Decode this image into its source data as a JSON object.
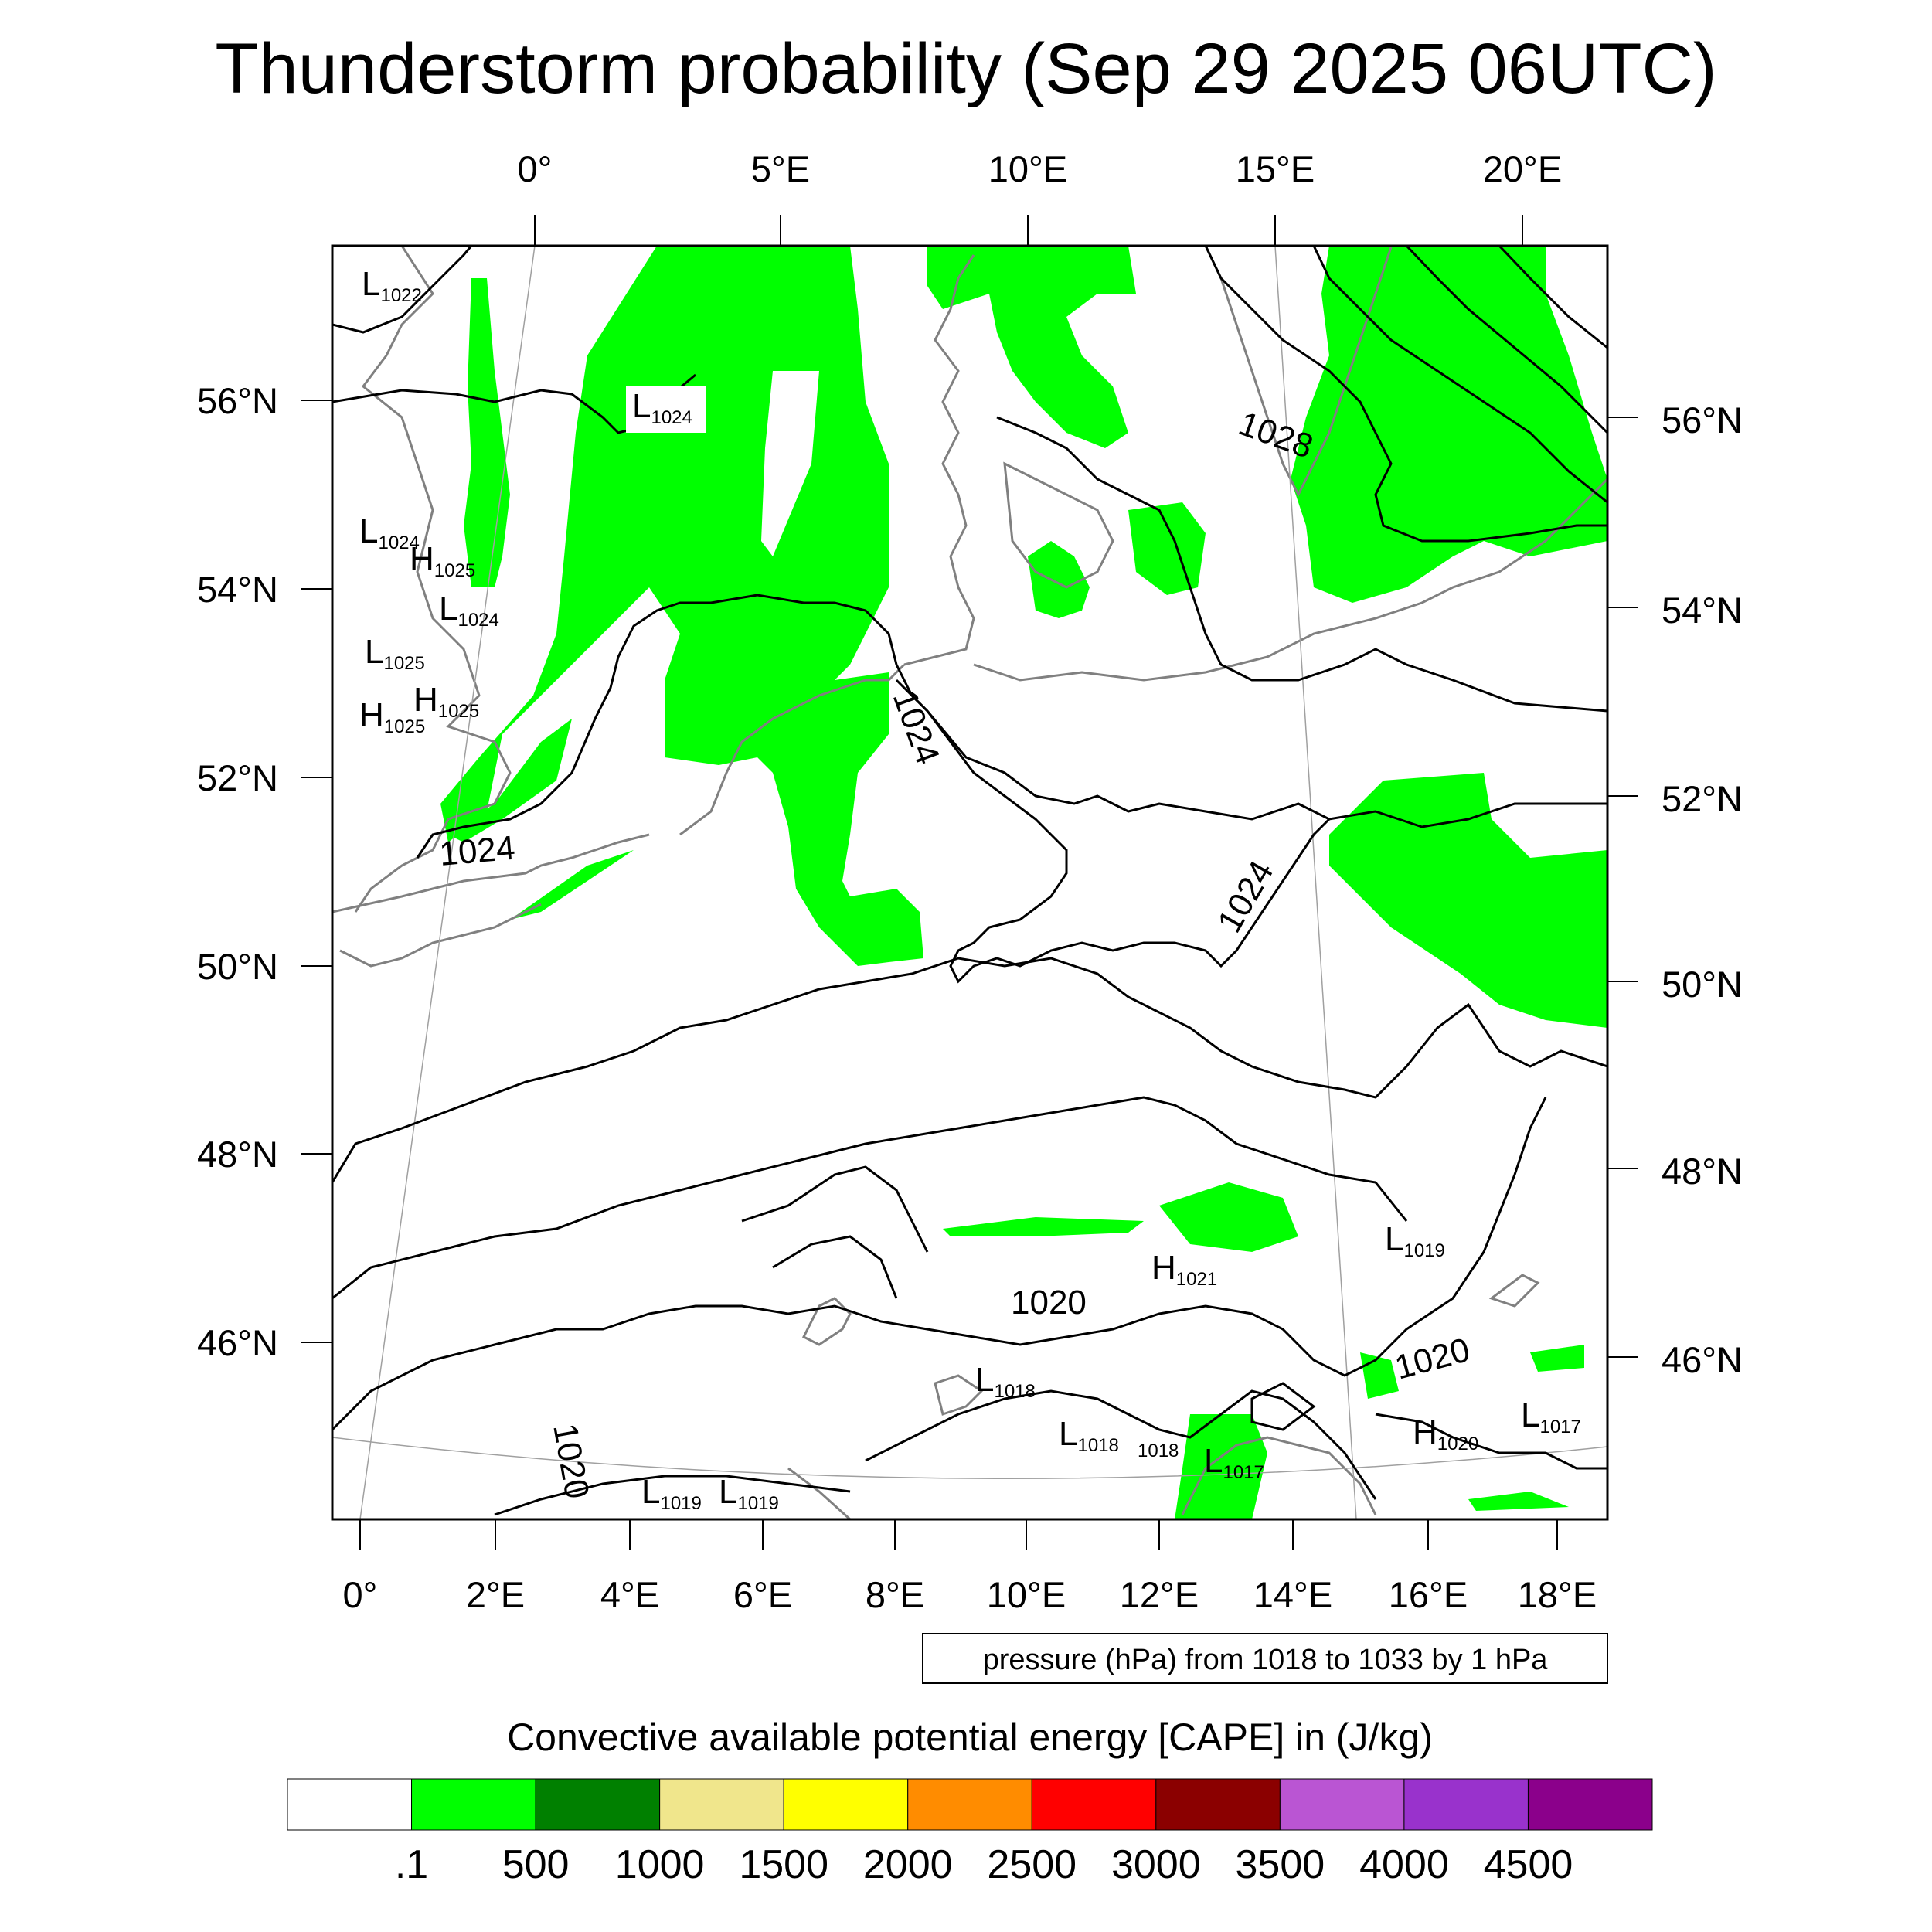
{
  "title": "Thunderstorm probability (Sep 29 2025 06UTC)",
  "top_lon_labels": [
    "0°",
    "5°E",
    "10°E",
    "15°E",
    "20°E"
  ],
  "bottom_lon_labels": [
    "0°",
    "2°E",
    "4°E",
    "6°E",
    "8°E",
    "10°E",
    "12°E",
    "14°E",
    "16°E",
    "18°E"
  ],
  "left_lat_labels": [
    "56°N",
    "54°N",
    "52°N",
    "50°N",
    "48°N",
    "46°N"
  ],
  "right_lat_labels": [
    "56°N",
    "54°N",
    "52°N",
    "50°N",
    "48°N",
    "46°N"
  ],
  "pressure_centers": [
    {
      "letter": "L",
      "value": "1022"
    },
    {
      "letter": "L",
      "value": "1024"
    },
    {
      "letter": "L",
      "value": "1024"
    },
    {
      "letter": "H",
      "value": "1025"
    },
    {
      "letter": "L",
      "value": "1024"
    },
    {
      "letter": "L",
      "value": "1025"
    },
    {
      "letter": "H",
      "value": "1025"
    },
    {
      "letter": "H",
      "value": "1025"
    },
    {
      "letter": "H",
      "value": "1021"
    },
    {
      "letter": "L",
      "value": "1019"
    },
    {
      "letter": "L",
      "value": "1018"
    },
    {
      "letter": "L",
      "value": "1018"
    },
    {
      "letter": "L",
      "value": "1017"
    },
    {
      "letter": "H",
      "value": "1020"
    },
    {
      "letter": "L",
      "value": "1017"
    },
    {
      "letter": "L",
      "value": "1019"
    },
    {
      "letter": "L",
      "value": "1019"
    }
  ],
  "contour_labels": [
    "1028",
    "1024",
    "1024",
    "1024",
    "1020",
    "1020",
    "1020",
    "1018"
  ],
  "pressure_note": "pressure (hPa) from 1018 to 1033 by 1 hPa",
  "colorbar": {
    "title": "Convective available potential energy [CAPE] in (J/kg)",
    "labels": [
      ".1",
      "500",
      "1000",
      "1500",
      "2000",
      "2500",
      "3000",
      "3500",
      "4000",
      "4500"
    ],
    "colors": [
      "#ffffff",
      "#00ff00",
      "#008000",
      "#f0e68c",
      "#ffff00",
      "#ff8c00",
      "#ff0000",
      "#8b0000",
      "#ba55d3",
      "#9932cc",
      "#8b008b"
    ]
  },
  "colors": {
    "cape_low": "#00ff00",
    "isobar": "#000000",
    "coastline": "#808080",
    "graticule": "#a0a0a0"
  }
}
